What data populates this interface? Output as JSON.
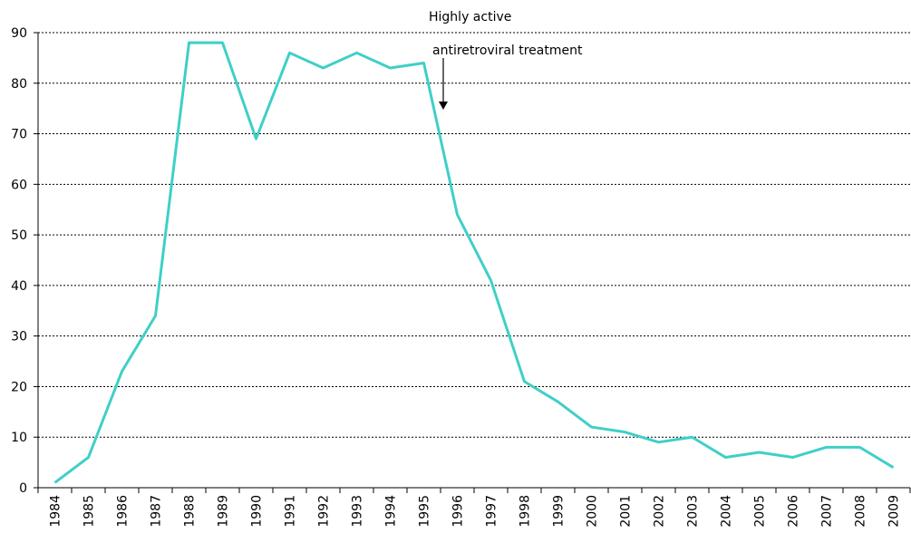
{
  "chart_data": {
    "type": "line",
    "annotation": [
      "Highly active",
      "antiretroviral treatment"
    ],
    "categories": [
      "1984",
      "1985",
      "1986",
      "1987",
      "1988",
      "1989",
      "1990",
      "1991",
      "1992",
      "1993",
      "1994",
      "1995",
      "1996",
      "1997",
      "1998",
      "1999",
      "2000",
      "2001",
      "2002",
      "2003",
      "2004",
      "2005",
      "2006",
      "2007",
      "2008",
      "2009"
    ],
    "series": [
      {
        "color": "#3fcfc8",
        "values": [
          1,
          6,
          23,
          34,
          88,
          88,
          69,
          86,
          83,
          86,
          83,
          84,
          54,
          41,
          21,
          17,
          12,
          11,
          9,
          10,
          6,
          7,
          6,
          8,
          8,
          4
        ]
      }
    ],
    "ylim": [
      0,
      90
    ],
    "yticks": [
      0,
      10,
      20,
      30,
      40,
      50,
      60,
      70,
      80,
      90
    ],
    "grid": true
  }
}
